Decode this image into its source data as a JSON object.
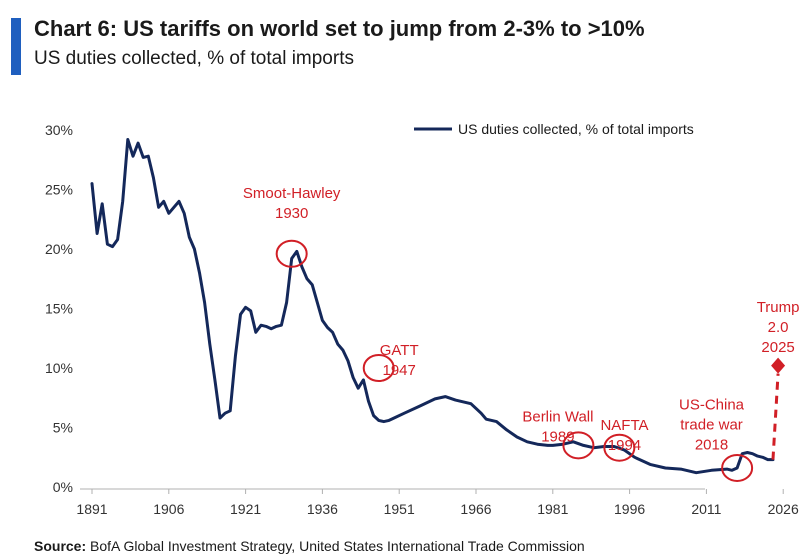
{
  "title": "Chart 6: US tariffs on world set to jump from 2-3% to >10%",
  "subtitle": "US duties collected, % of total imports",
  "source_label": "Source:",
  "source_text": "BofA Global Investment Strategy, United States International Trade Commission",
  "colors": {
    "accent": "#1f5fbf",
    "series": "#14285a",
    "annotation": "#d11f26",
    "axis": "#b0b0b0"
  },
  "chart_data": {
    "type": "line",
    "title": "Chart 6: US tariffs on world set to jump from 2-3% to >10%",
    "subtitle": "US duties collected, % of total imports",
    "xlabel": "",
    "ylabel": "",
    "xlim": [
      1891,
      2030
    ],
    "ylim": [
      0,
      30
    ],
    "x_ticks": [
      1891,
      1906,
      1921,
      1936,
      1951,
      1966,
      1981,
      1996,
      2011,
      2026
    ],
    "y_ticks": [
      0,
      5,
      10,
      15,
      20,
      25,
      30
    ],
    "y_tick_labels": [
      "0%",
      "5%",
      "10%",
      "15%",
      "20%",
      "25%",
      "30%"
    ],
    "grid": false,
    "legend": "top-right",
    "series": [
      {
        "name": "US duties collected, % of total imports",
        "x": [
          1891,
          1892,
          1893,
          1894,
          1895,
          1896,
          1897,
          1898,
          1899,
          1900,
          1901,
          1902,
          1903,
          1904,
          1905,
          1906,
          1907,
          1908,
          1909,
          1910,
          1911,
          1912,
          1913,
          1914,
          1915,
          1916,
          1917,
          1918,
          1919,
          1920,
          1921,
          1922,
          1923,
          1924,
          1925,
          1926,
          1927,
          1928,
          1929,
          1930,
          1931,
          1932,
          1933,
          1934,
          1935,
          1936,
          1937,
          1938,
          1939,
          1940,
          1941,
          1942,
          1943,
          1944,
          1945,
          1946,
          1947,
          1948,
          1949,
          1950,
          1952,
          1955,
          1958,
          1960,
          1962,
          1965,
          1967,
          1968,
          1970,
          1972,
          1974,
          1976,
          1978,
          1980,
          1981,
          1983,
          1985,
          1987,
          1989,
          1991,
          1993,
          1995,
          1997,
          2000,
          2003,
          2006,
          2009,
          2012,
          2015,
          2016,
          2017,
          2018,
          2019,
          2020,
          2021,
          2022,
          2023,
          2024
        ],
        "values": [
          25.5,
          21.3,
          23.8,
          20.4,
          20.2,
          20.8,
          24.0,
          29.2,
          27.8,
          28.9,
          27.7,
          27.8,
          26.0,
          23.5,
          24.0,
          23.0,
          23.5,
          24.0,
          23.0,
          21.0,
          20.0,
          18.0,
          15.5,
          12.0,
          9.0,
          5.8,
          6.2,
          6.4,
          11.0,
          14.5,
          15.1,
          14.8,
          13.0,
          13.6,
          13.5,
          13.3,
          13.5,
          13.6,
          15.5,
          19.2,
          19.8,
          18.5,
          17.5,
          17.0,
          15.5,
          14.0,
          13.4,
          13.0,
          12.0,
          11.5,
          10.6,
          9.2,
          8.3,
          9.0,
          7.2,
          6.0,
          5.6,
          5.5,
          5.6,
          5.8,
          6.2,
          6.8,
          7.4,
          7.6,
          7.3,
          7.0,
          6.2,
          5.7,
          5.5,
          4.8,
          4.2,
          3.8,
          3.6,
          3.5,
          3.5,
          3.6,
          3.8,
          3.5,
          3.3,
          3.4,
          3.4,
          3.1,
          2.5,
          1.9,
          1.6,
          1.5,
          1.2,
          1.4,
          1.5,
          1.4,
          1.6,
          2.8,
          2.9,
          2.8,
          2.6,
          2.5,
          2.3,
          2.3
        ]
      }
    ],
    "projection": {
      "from_x": 2024,
      "from_y": 2.3,
      "to_x": 2025,
      "to_y": 10.2
    },
    "annotations": [
      {
        "label": [
          "Smoot-Hawley",
          "1930"
        ],
        "x": 1930,
        "y": 19.6,
        "text_x": 1930,
        "text_y": 24.3
      },
      {
        "label": [
          "GATT",
          "1947"
        ],
        "x": 1947,
        "y": 10.0,
        "text_x": 1951,
        "text_y": 11.1
      },
      {
        "label": [
          "Berlin Wall",
          "1989"
        ],
        "x": 1986,
        "y": 3.5,
        "text_x": 1982,
        "text_y": 5.5
      },
      {
        "label": [
          "NAFTA",
          "1994"
        ],
        "x": 1994,
        "y": 3.3,
        "text_x": 1995,
        "text_y": 4.8
      },
      {
        "label": [
          "US-China",
          "trade war",
          "2018"
        ],
        "x": 2017,
        "y": 1.6,
        "text_x": 2012,
        "text_y": 6.5
      },
      {
        "label": [
          "Trump",
          "2.0",
          "2025"
        ],
        "x": 2025,
        "y": 10.2,
        "text_x": 2025,
        "text_y": 14.7
      }
    ]
  }
}
